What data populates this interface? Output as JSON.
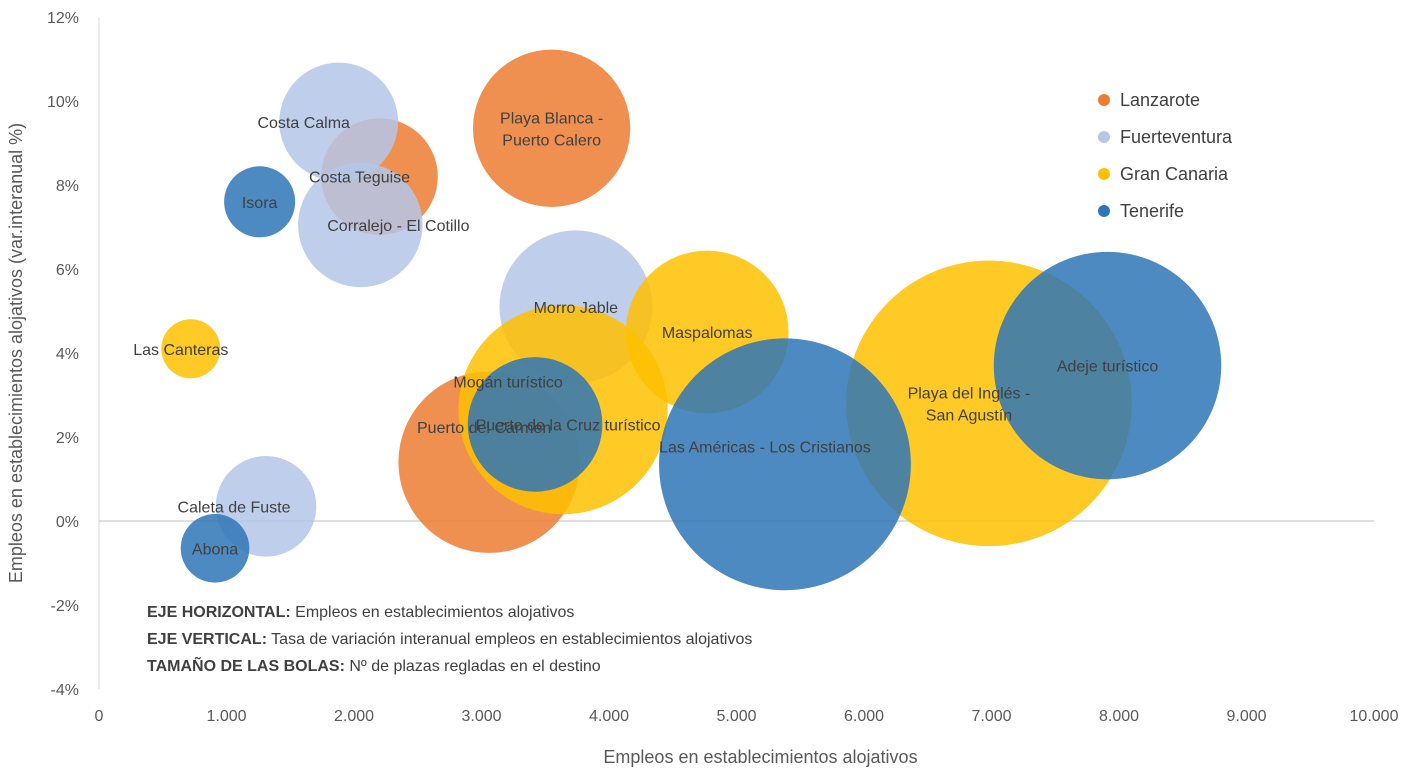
{
  "chart_data": {
    "type": "bubble",
    "xlabel": "Empleos en establecimientos alojativos",
    "ylabel": "Empleos en establecimientos alojativos (var.interanual %)",
    "xlim": [
      0,
      10000
    ],
    "ylim": [
      -4,
      12
    ],
    "x_ticks": [
      {
        "value": 0,
        "label": "0"
      },
      {
        "value": 1000,
        "label": "1.000"
      },
      {
        "value": 2000,
        "label": "2.000"
      },
      {
        "value": 3000,
        "label": "3.000"
      },
      {
        "value": 4000,
        "label": "4.000"
      },
      {
        "value": 5000,
        "label": "5.000"
      },
      {
        "value": 6000,
        "label": "6.000"
      },
      {
        "value": 7000,
        "label": "7.000"
      },
      {
        "value": 8000,
        "label": "8.000"
      },
      {
        "value": 9000,
        "label": "9.000"
      },
      {
        "value": 10000,
        "label": "10.000"
      }
    ],
    "y_ticks": [
      {
        "value": -4,
        "label": "-4%"
      },
      {
        "value": -2,
        "label": "-2%"
      },
      {
        "value": 0,
        "label": "0%"
      },
      {
        "value": 2,
        "label": "2%"
      },
      {
        "value": 4,
        "label": "4%"
      },
      {
        "value": 6,
        "label": "6%"
      },
      {
        "value": 8,
        "label": "8%"
      },
      {
        "value": 10,
        "label": "10%"
      },
      {
        "value": 12,
        "label": "12%"
      }
    ],
    "legend_position": "top-right",
    "series": [
      {
        "name": "Lanzarote",
        "color": "#ED7D31",
        "points": [
          {
            "label": "Playa Blanca - Puerto Calero",
            "x": 3550,
            "y": 9.35,
            "size": 14200
          },
          {
            "label": "Costa Teguise",
            "x": 2200,
            "y": 8.2,
            "size": 7800
          },
          {
            "label": "Puerto del Carmen",
            "x": 3060,
            "y": 1.4,
            "size": 18900
          }
        ]
      },
      {
        "name": "Fuerteventura",
        "color": "#B4C7E7",
        "points": [
          {
            "label": "Costa Calma",
            "x": 1880,
            "y": 9.5,
            "size": 8100
          },
          {
            "label": "Corralejo - El Cotillo",
            "x": 2050,
            "y": 7.05,
            "size": 8900
          },
          {
            "label": "Morro Jable",
            "x": 3740,
            "y": 5.1,
            "size": 13400
          },
          {
            "label": "Caleta de Fuste",
            "x": 1310,
            "y": 0.35,
            "size": 5800
          }
        ]
      },
      {
        "name": "Gran Canaria",
        "color": "#FFC000",
        "points": [
          {
            "label": "Las Canteras",
            "x": 720,
            "y": 4.1,
            "size": 2000
          },
          {
            "label": "Maspalomas",
            "x": 4770,
            "y": 4.5,
            "size": 15200
          },
          {
            "label": "Mogán turístico",
            "x": 3640,
            "y": 2.65,
            "size": 25100
          },
          {
            "label": "Playa del Inglés - San Agustín",
            "x": 6980,
            "y": 2.8,
            "size": 46800
          }
        ]
      },
      {
        "name": "Tenerife",
        "color": "#2E75B6",
        "points": [
          {
            "label": "Isora",
            "x": 1260,
            "y": 7.6,
            "size": 2900
          },
          {
            "label": "Abona",
            "x": 910,
            "y": -0.65,
            "size": 2700
          },
          {
            "label": "Puerto de la Cruz turístico",
            "x": 3420,
            "y": 2.3,
            "size": 10400
          },
          {
            "label": "Las Américas - Los Cristianos",
            "x": 5380,
            "y": 1.35,
            "size": 36400
          },
          {
            "label": "Adeje turístico",
            "x": 7910,
            "y": 3.7,
            "size": 29700
          }
        ]
      }
    ]
  },
  "notes": [
    {
      "bold": "EJE HORIZONTAL:",
      "text": " Empleos en establecimientos alojativos"
    },
    {
      "bold": "EJE VERTICAL:",
      "text": " Tasa de variación interanual empleos en establecimientos alojativos"
    },
    {
      "bold": "TAMAÑO DE LAS BOLAS:",
      "text": " Nº de plazas regladas en el destino"
    }
  ]
}
